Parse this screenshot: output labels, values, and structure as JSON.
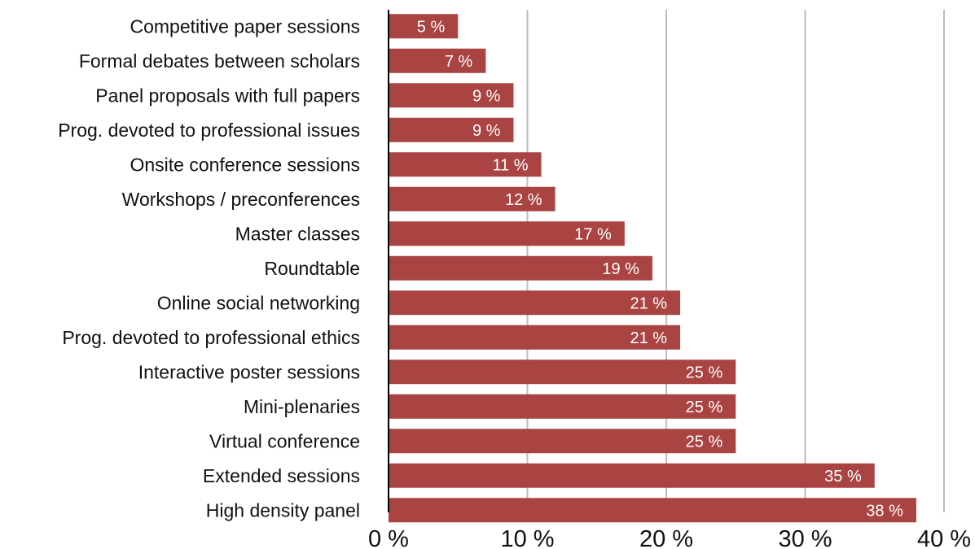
{
  "chart_data": {
    "type": "bar",
    "orientation": "horizontal",
    "title": "",
    "xlabel": "",
    "ylabel": "",
    "categories": [
      "Competitive paper sessions",
      "Formal debates between scholars",
      "Panel proposals with full papers",
      "Prog. devoted to professional issues",
      "Onsite conference sessions",
      "Workshops / preconferences",
      "Master classes",
      "Roundtable",
      "Online social networking",
      "Prog. devoted to professional ethics",
      "Interactive poster sessions",
      "Mini-plenaries",
      "Virtual conference",
      "Extended sessions",
      "High density panel"
    ],
    "values": [
      5,
      7,
      9,
      9,
      11,
      12,
      17,
      19,
      21,
      21,
      25,
      25,
      25,
      35,
      38
    ],
    "data_labels": [
      "5 %",
      "7 %",
      "9 %",
      "9 %",
      "11 %",
      "12 %",
      "17 %",
      "19 %",
      "21 %",
      "21 %",
      "25 %",
      "25 %",
      "25 %",
      "35 %",
      "38 %"
    ],
    "xlim": [
      0,
      40
    ],
    "xticks": [
      0,
      10,
      20,
      30,
      40
    ],
    "xtick_labels": [
      "0 %",
      "10 %",
      "20 %",
      "30 %",
      "40 %"
    ],
    "grid": "vertical",
    "legend": "none",
    "colors": {
      "bar": "#a94442",
      "grid": "#bdbdbd",
      "axis": "#000000",
      "label_text": "#ffffff"
    }
  }
}
